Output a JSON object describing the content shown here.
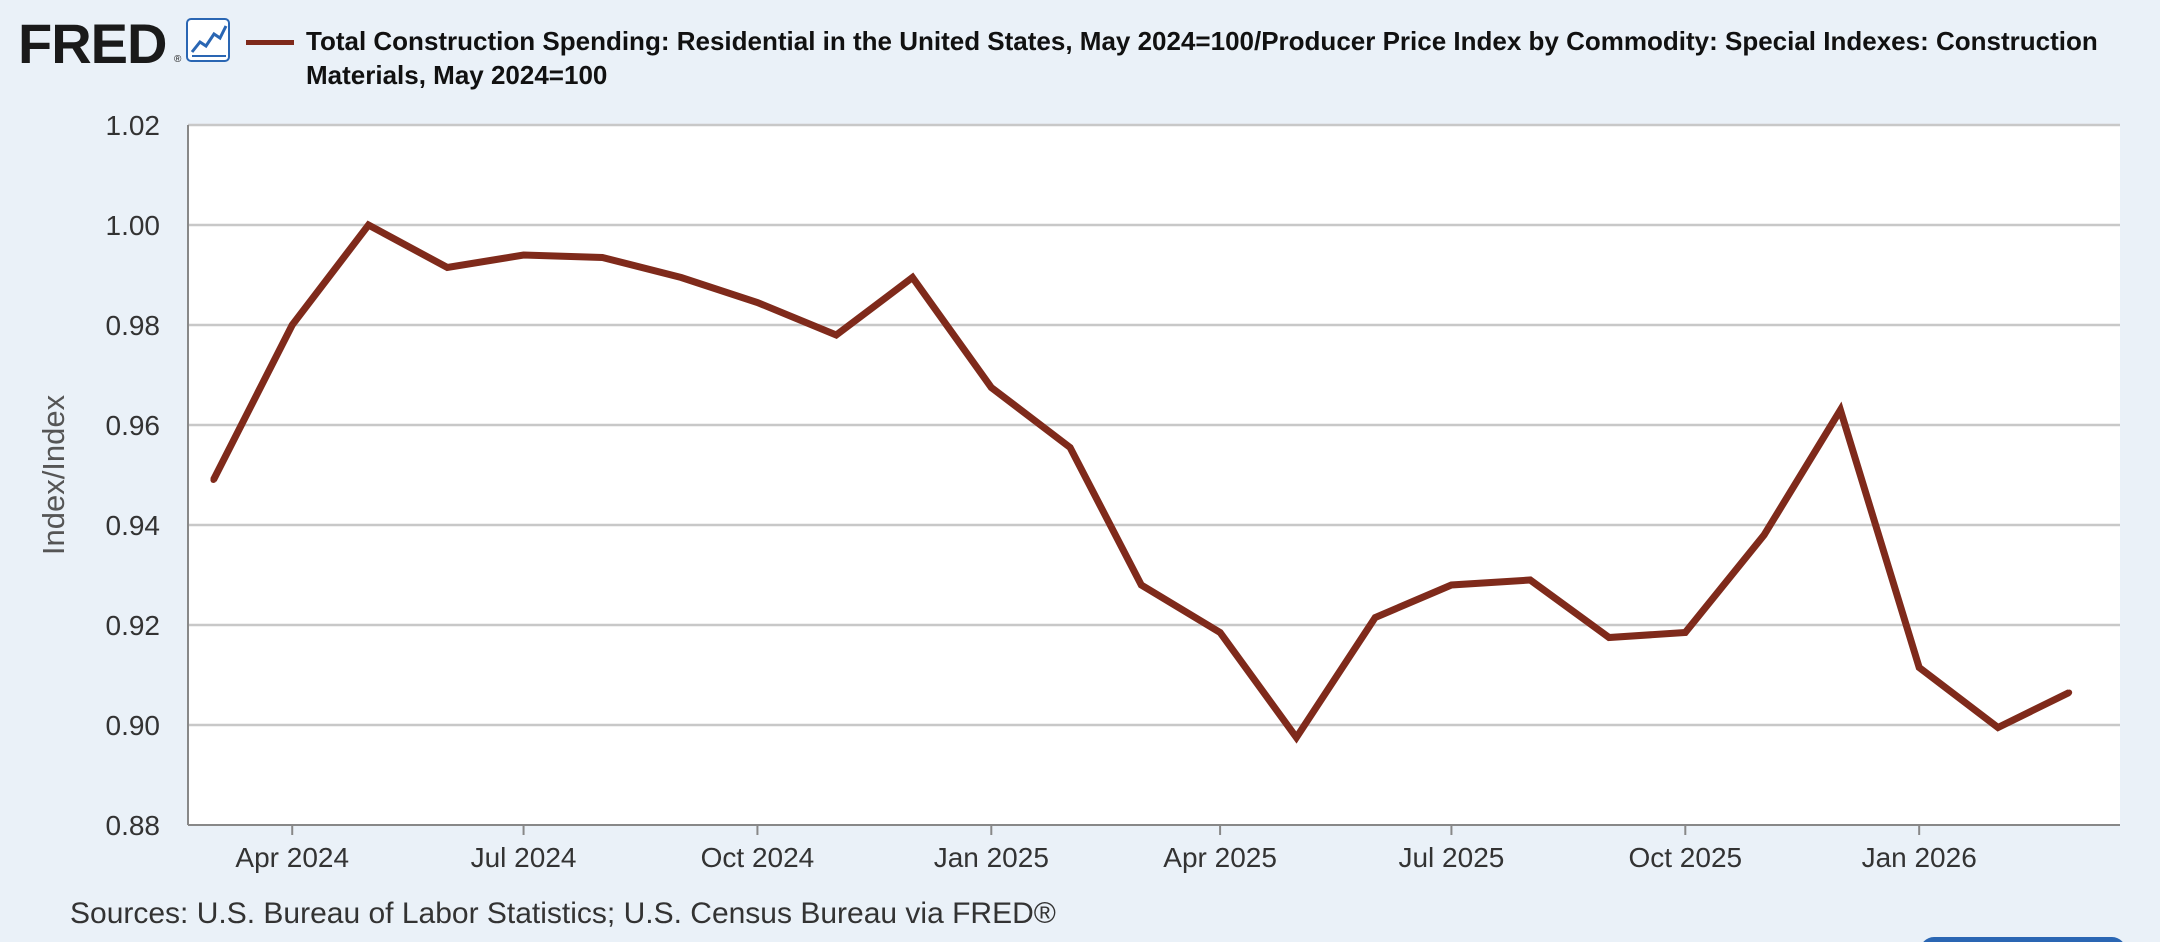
{
  "header": {
    "logo_text": "FRED",
    "logo_mark": "®",
    "chart_icon": "line-chart-icon",
    "series_title": "Total Construction Spending: Residential in the United States, May 2024=100/Producer Price Index by Commodity: Special Indexes: Construction Materials, May 2024=100"
  },
  "footer": {
    "source": "Sources: U.S. Bureau of Labor Statistics; U.S. Census Bureau via FRED®"
  },
  "colors": {
    "background": "#eaf1f8",
    "plot_background": "#ffffff",
    "series_line": "#7f2a1b",
    "gridline": "#c8c8c8",
    "logo_blue": "#2a66b3"
  },
  "chart_data": {
    "type": "line",
    "title": "",
    "ylabel": "Index/Index",
    "xlabel": "",
    "ylim": [
      0.88,
      1.02
    ],
    "yticks": [
      "0.88",
      "0.90",
      "0.92",
      "0.94",
      "0.96",
      "0.98",
      "1.00",
      "1.02"
    ],
    "xlim": [
      "2024-02-20",
      "2026-03-21"
    ],
    "xticks": [
      {
        "date": "2024-04-01",
        "label": "Apr 2024"
      },
      {
        "date": "2024-07-01",
        "label": "Jul 2024"
      },
      {
        "date": "2024-10-01",
        "label": "Oct 2024"
      },
      {
        "date": "2025-01-01",
        "label": "Jan 2025"
      },
      {
        "date": "2025-04-01",
        "label": "Apr 2025"
      },
      {
        "date": "2025-07-01",
        "label": "Jul 2025"
      },
      {
        "date": "2025-10-01",
        "label": "Oct 2025"
      },
      {
        "date": "2026-01-01",
        "label": "Jan 2026"
      }
    ],
    "grid": true,
    "series": [
      {
        "name": "Total Construction Spending: Residential in the United States, May 2024=100/Producer Price Index by Commodity: Special Indexes: Construction Materials, May 2024=100",
        "color": "#7f2a1b",
        "x": [
          "2024-03-01",
          "2024-04-01",
          "2024-05-01",
          "2024-06-01",
          "2024-07-01",
          "2024-08-01",
          "2024-09-01",
          "2024-10-01",
          "2024-11-01",
          "2024-12-01",
          "2025-01-01",
          "2025-02-01",
          "2025-03-01",
          "2025-04-01",
          "2025-05-01",
          "2025-06-01",
          "2025-07-01",
          "2025-08-01",
          "2025-09-01",
          "2025-10-01",
          "2025-11-01",
          "2025-12-01",
          "2026-01-01",
          "2026-02-01",
          "2026-03-01"
        ],
        "y": [
          0.949,
          0.98,
          1.0,
          0.9915,
          0.994,
          0.9935,
          0.9895,
          0.9845,
          0.978,
          0.9895,
          0.9675,
          0.9555,
          0.928,
          0.9185,
          0.8975,
          0.9215,
          0.928,
          0.929,
          0.9175,
          0.9185,
          0.938,
          0.963,
          0.9115,
          0.8995,
          0.9065
        ]
      }
    ]
  }
}
